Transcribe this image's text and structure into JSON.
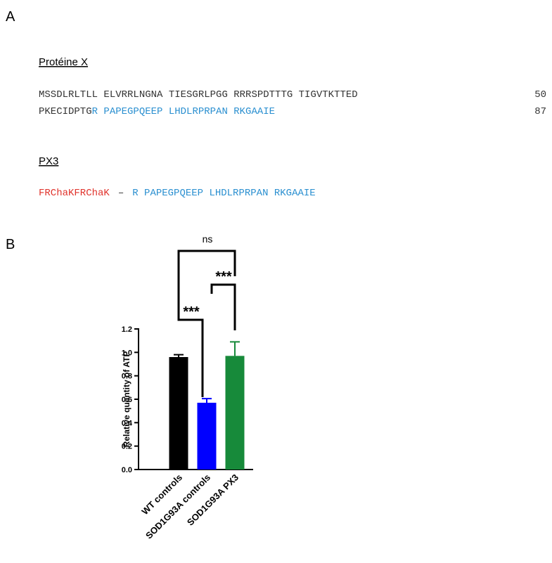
{
  "panel_a": {
    "label": "A",
    "protein_title": "Protéine X",
    "sequence_lines": [
      {
        "black": "MSSDLRLTLL ELVRRLNGNA TIESGRLPGG RRRSPDTTTG TIGVTKTTED",
        "count": "50"
      },
      {
        "black": "PKECIDPTG",
        "blue": "R PAPEGPQEEP LHDLRPRPAN RKGAAIE",
        "count": "87"
      }
    ],
    "px3_title": "PX3",
    "px3_sequence": {
      "red": "FRChaKFRChaK",
      "dash": "–",
      "blue": "R PAPEGPQEEP LHDLRPRPAN RKGAAIE"
    }
  },
  "panel_b": {
    "label": "B"
  },
  "chart_data": {
    "type": "bar",
    "y_label": "Relative quantity of ATP",
    "categories": [
      "WT controls",
      "SOD1G93A controls",
      "SOD1G93A PX3"
    ],
    "values": [
      0.96,
      0.57,
      0.97
    ],
    "errors": [
      0.02,
      0.035,
      0.12
    ],
    "colors": [
      "#000000",
      "#0000ff",
      "#178a3a"
    ],
    "ylim": [
      0,
      1.2
    ],
    "yticks": [
      {
        "value": 0,
        "label": "0.0"
      },
      0.2,
      0.4,
      0.6,
      0.8,
      {
        "value": 1,
        "label": "1.0"
      },
      1.2
    ],
    "significance": [
      "***",
      "***",
      "ns"
    ]
  }
}
